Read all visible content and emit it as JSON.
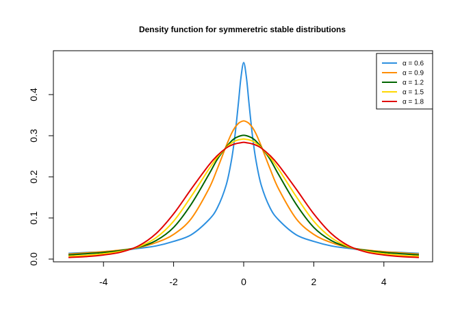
{
  "chart_data": {
    "type": "line",
    "title": "Density function for symmeretric stable distributions",
    "xlabel": "",
    "ylabel": "",
    "xlim": [
      -5,
      5
    ],
    "ylim": [
      0,
      0.48
    ],
    "x_ticks": [
      -4,
      -2,
      0,
      2,
      4
    ],
    "x_tick_labels": [
      "-4",
      "-2",
      "0",
      "2",
      "4"
    ],
    "y_ticks": [
      0.0,
      0.1,
      0.2,
      0.3,
      0.4
    ],
    "y_tick_labels": [
      "0.0",
      "0.1",
      "0.2",
      "0.3",
      "0.4"
    ],
    "grid": false,
    "legend_position": "top-right",
    "x": [
      -5,
      -4.5,
      -4,
      -3.5,
      -3,
      -2.5,
      -2,
      -1.5,
      -1,
      -0.75,
      -0.5,
      -0.35,
      -0.25,
      -0.15,
      -0.08,
      0,
      0.08,
      0.15,
      0.25,
      0.35,
      0.5,
      0.75,
      1,
      1.5,
      2,
      2.5,
      3,
      3.5,
      4,
      4.5,
      5
    ],
    "series": [
      {
        "name": "α = 0.6",
        "color": "#2b8fe0",
        "values": [
          0.014,
          0.016,
          0.018,
          0.021,
          0.026,
          0.032,
          0.043,
          0.059,
          0.095,
          0.125,
          0.18,
          0.24,
          0.3,
          0.38,
          0.44,
          0.478,
          0.44,
          0.38,
          0.3,
          0.24,
          0.18,
          0.125,
          0.095,
          0.059,
          0.043,
          0.032,
          0.026,
          0.021,
          0.018,
          0.016,
          0.014
        ]
      },
      {
        "name": "α = 0.9",
        "color": "#ff8c00",
        "values": [
          0.012,
          0.015,
          0.018,
          0.022,
          0.028,
          0.04,
          0.06,
          0.098,
          0.17,
          0.22,
          0.275,
          0.305,
          0.32,
          0.33,
          0.334,
          0.336,
          0.334,
          0.33,
          0.32,
          0.305,
          0.275,
          0.22,
          0.17,
          0.098,
          0.06,
          0.04,
          0.028,
          0.022,
          0.018,
          0.015,
          0.012
        ]
      },
      {
        "name": "α = 1.2",
        "color": "#006400",
        "values": [
          0.01,
          0.013,
          0.016,
          0.021,
          0.029,
          0.045,
          0.077,
          0.133,
          0.205,
          0.243,
          0.272,
          0.287,
          0.294,
          0.298,
          0.3,
          0.301,
          0.3,
          0.298,
          0.294,
          0.287,
          0.272,
          0.243,
          0.205,
          0.133,
          0.077,
          0.045,
          0.029,
          0.021,
          0.016,
          0.013,
          0.01
        ]
      },
      {
        "name": "α = 1.5",
        "color": "#ffd700",
        "values": [
          0.007,
          0.009,
          0.013,
          0.019,
          0.03,
          0.052,
          0.092,
          0.152,
          0.218,
          0.248,
          0.271,
          0.282,
          0.287,
          0.29,
          0.291,
          0.292,
          0.291,
          0.29,
          0.287,
          0.282,
          0.271,
          0.248,
          0.218,
          0.152,
          0.092,
          0.052,
          0.03,
          0.019,
          0.013,
          0.009,
          0.007
        ]
      },
      {
        "name": "α = 1.8",
        "color": "#e00000",
        "values": [
          0.004,
          0.006,
          0.01,
          0.017,
          0.032,
          0.062,
          0.11,
          0.17,
          0.228,
          0.252,
          0.27,
          0.277,
          0.28,
          0.282,
          0.283,
          0.284,
          0.283,
          0.282,
          0.28,
          0.277,
          0.27,
          0.252,
          0.228,
          0.17,
          0.11,
          0.062,
          0.032,
          0.017,
          0.01,
          0.006,
          0.004
        ]
      }
    ]
  }
}
